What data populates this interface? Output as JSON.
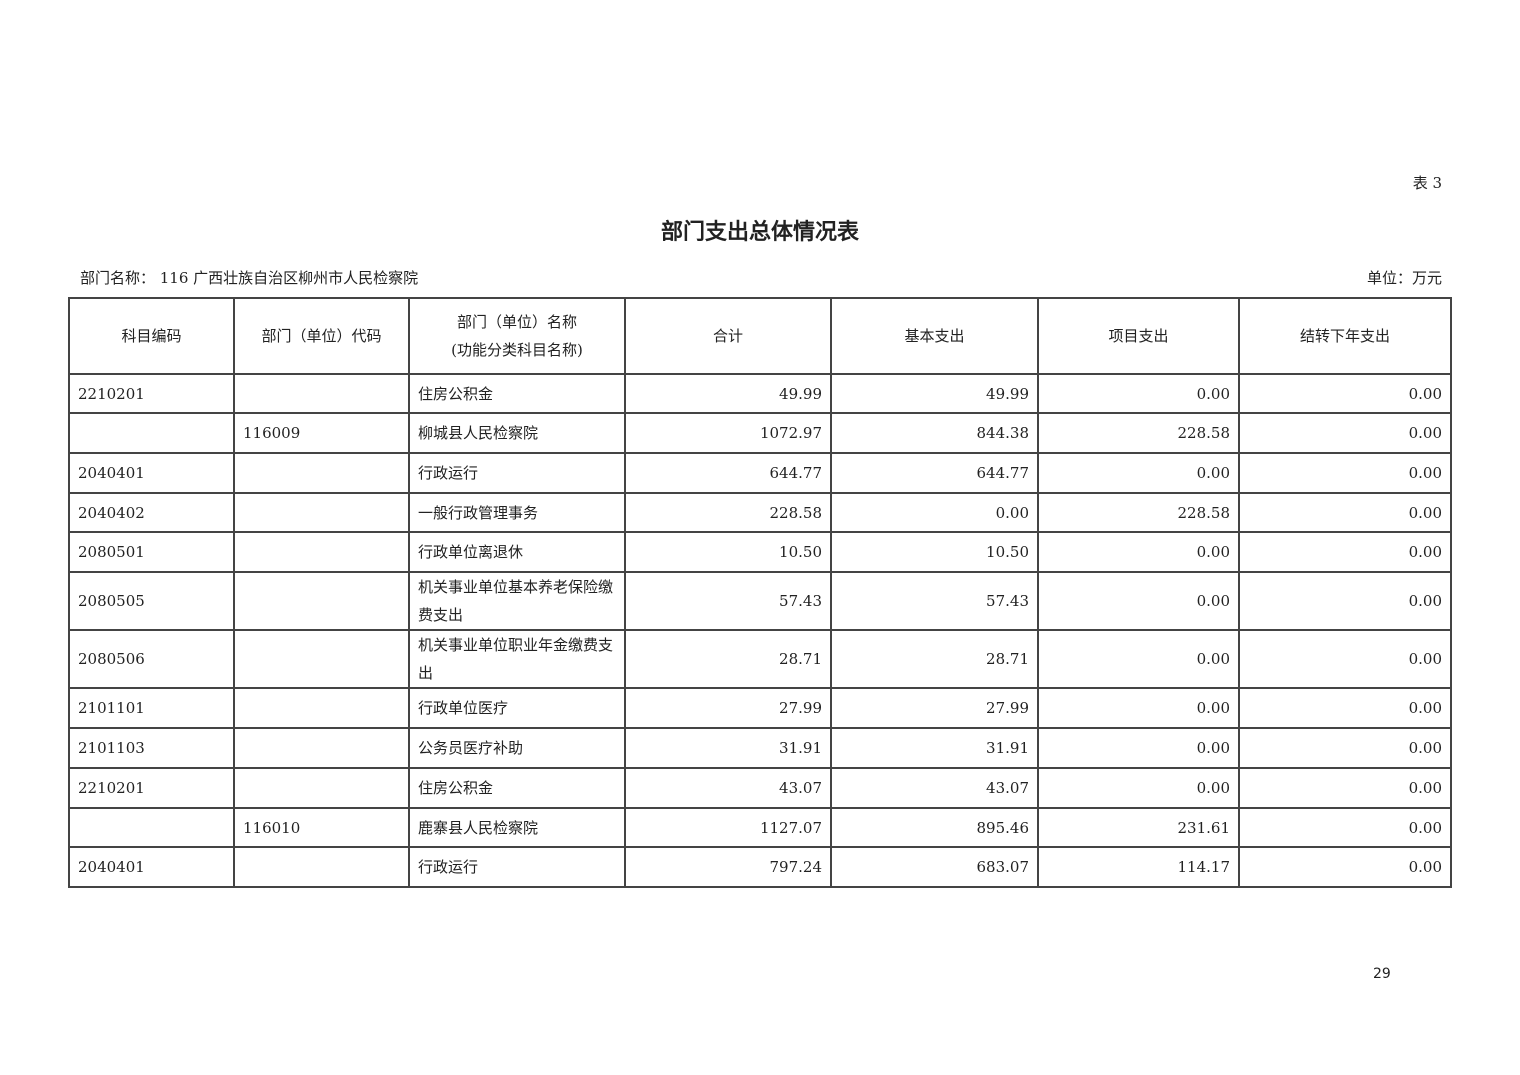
{
  "table_tag": "表 3",
  "title": "部门支出总体情况表",
  "department_label": "部门名称：  116 广西壮族自治区柳州市人民检察院",
  "unit_label": "单位：万元",
  "columns": [
    "科目编码",
    "部门（单位）代码",
    "部门（单位）名称",
    "(功能分类科目名称)",
    "合计",
    "基本支出",
    "项目支出",
    "结转下年支出"
  ],
  "rows": [
    {
      "code": "2210201",
      "dept_code": "",
      "name": "住房公积金",
      "total": "49.99",
      "basic": "49.99",
      "project": "0.00",
      "carry": "0.00"
    },
    {
      "code": "",
      "dept_code": "116009",
      "name": "柳城县人民检察院",
      "total": "1072.97",
      "basic": "844.38",
      "project": "228.58",
      "carry": "0.00"
    },
    {
      "code": "2040401",
      "dept_code": "",
      "name": "行政运行",
      "total": "644.77",
      "basic": "644.77",
      "project": "0.00",
      "carry": "0.00"
    },
    {
      "code": "2040402",
      "dept_code": "",
      "name": "一般行政管理事务",
      "total": "228.58",
      "basic": "0.00",
      "project": "228.58",
      "carry": "0.00"
    },
    {
      "code": "2080501",
      "dept_code": "",
      "name": "行政单位离退休",
      "total": "10.50",
      "basic": "10.50",
      "project": "0.00",
      "carry": "0.00"
    },
    {
      "code": "2080505",
      "dept_code": "",
      "name": "机关事业单位基本养老保险缴费支出",
      "total": "57.43",
      "basic": "57.43",
      "project": "0.00",
      "carry": "0.00"
    },
    {
      "code": "2080506",
      "dept_code": "",
      "name": "机关事业单位职业年金缴费支出",
      "total": "28.71",
      "basic": "28.71",
      "project": "0.00",
      "carry": "0.00"
    },
    {
      "code": "2101101",
      "dept_code": "",
      "name": "行政单位医疗",
      "total": "27.99",
      "basic": "27.99",
      "project": "0.00",
      "carry": "0.00"
    },
    {
      "code": "2101103",
      "dept_code": "",
      "name": "公务员医疗补助",
      "total": "31.91",
      "basic": "31.91",
      "project": "0.00",
      "carry": "0.00"
    },
    {
      "code": "2210201",
      "dept_code": "",
      "name": "住房公积金",
      "total": "43.07",
      "basic": "43.07",
      "project": "0.00",
      "carry": "0.00"
    },
    {
      "code": "",
      "dept_code": "116010",
      "name": "鹿寨县人民检察院",
      "total": "1127.07",
      "basic": "895.46",
      "project": "231.61",
      "carry": "0.00"
    },
    {
      "code": "2040401",
      "dept_code": "",
      "name": "行政运行",
      "total": "797.24",
      "basic": "683.07",
      "project": "114.17",
      "carry": "0.00"
    }
  ],
  "page_number": "29"
}
